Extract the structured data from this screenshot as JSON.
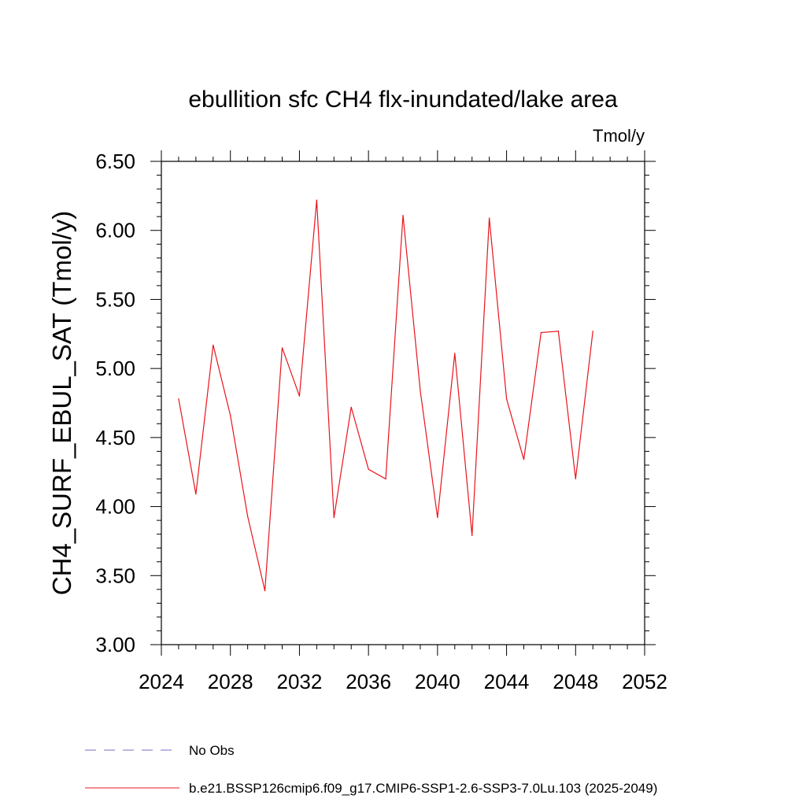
{
  "chart_data": {
    "type": "line",
    "title": "ebullition sfc CH4 flx-inundated/lake area",
    "units": "Tmol/y",
    "xlabel": "",
    "ylabel": "CH4_SURF_EBUL_SAT  (Tmol/y)",
    "xlim": [
      2024,
      2052
    ],
    "ylim": [
      3.0,
      6.5
    ],
    "x_ticks": [
      2024,
      2028,
      2032,
      2036,
      2040,
      2044,
      2048,
      2052
    ],
    "x_tick_labels": [
      "2024",
      "2028",
      "2032",
      "2036",
      "2040",
      "2044",
      "2048",
      "2052"
    ],
    "y_ticks": [
      3.0,
      3.5,
      4.0,
      4.5,
      5.0,
      5.5,
      6.0,
      6.5
    ],
    "y_tick_labels": [
      "3.00",
      "3.50",
      "4.00",
      "4.50",
      "5.00",
      "5.50",
      "6.00",
      "6.50"
    ],
    "grid": false,
    "legend_position": "bottom",
    "series": [
      {
        "name": "No Obs",
        "style": "dashed",
        "color": "#7b68c8",
        "x": [],
        "values": []
      },
      {
        "name": "b.e21.BSSP126cmip6.f09_g17.CMIP6-SSP1-2.6-SSP3-7.0Lu.103 (2025-2049)",
        "style": "solid",
        "color": "#e8141c",
        "x": [
          2025,
          2026,
          2027,
          2028,
          2029,
          2030,
          2031,
          2032,
          2033,
          2034,
          2035,
          2036,
          2037,
          2038,
          2039,
          2040,
          2041,
          2042,
          2043,
          2044,
          2045,
          2046,
          2047,
          2048,
          2049
        ],
        "values": [
          4.78,
          4.09,
          5.17,
          4.66,
          3.93,
          3.39,
          5.15,
          4.8,
          6.22,
          3.92,
          4.72,
          4.27,
          4.2,
          6.11,
          4.84,
          3.92,
          5.11,
          3.79,
          6.09,
          4.78,
          4.34,
          5.26,
          5.27,
          4.2,
          5.27
        ]
      }
    ]
  }
}
